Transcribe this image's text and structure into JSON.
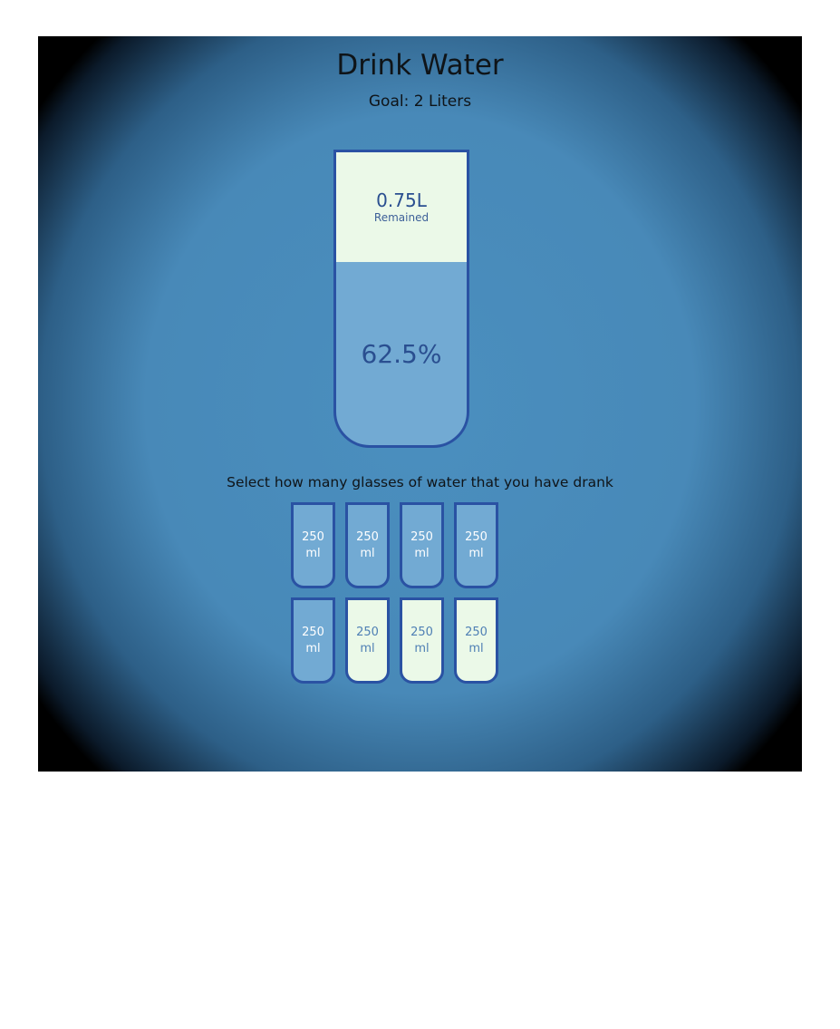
{
  "app": {
    "title": "Drink Water",
    "goal": "Goal: 2 Liters"
  },
  "cup": {
    "remained_amount": "0.75L",
    "remained_label": "Remained",
    "percentage": "62.5%",
    "filled_fraction": 0.625
  },
  "instruction": "Select how many glasses of water that you have drank",
  "glasses": [
    {
      "label": "250\nml",
      "filled": true
    },
    {
      "label": "250\nml",
      "filled": true
    },
    {
      "label": "250\nml",
      "filled": true
    },
    {
      "label": "250\nml",
      "filled": true
    },
    {
      "label": "250\nml",
      "filled": true
    },
    {
      "label": "250\nml",
      "filled": false
    },
    {
      "label": "250\nml",
      "filled": false
    },
    {
      "label": "250\nml",
      "filled": false
    }
  ],
  "colors": {
    "water": "#72aad3",
    "empty": "#ebf9e8",
    "border": "#2a52a3"
  }
}
